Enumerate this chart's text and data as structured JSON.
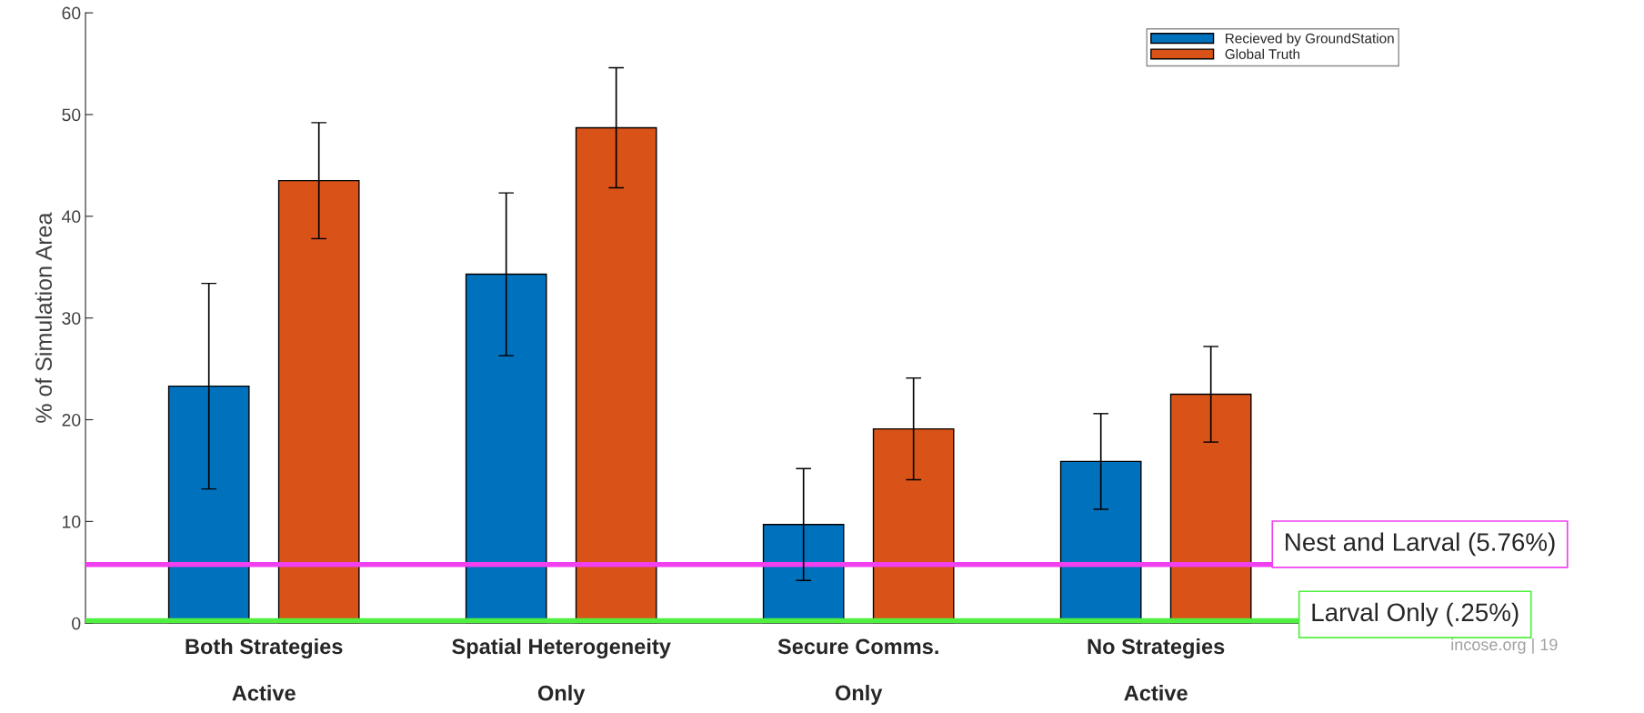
{
  "chart_data": {
    "type": "bar",
    "categories": [
      "Both Strategies\nActive",
      "Spatial Heterogeneity\nOnly",
      "Secure Comms.\nOnly",
      "No Strategies\nActive"
    ],
    "ylabel": "% of Simulation Area",
    "series": [
      {
        "name": "Recieved by GroundStation",
        "color": "#0072bd",
        "values": [
          23.3,
          34.3,
          9.7,
          15.9
        ],
        "errors": [
          10.1,
          8.0,
          5.5,
          4.7
        ]
      },
      {
        "name": "Global Truth",
        "color": "#d95319",
        "values": [
          43.5,
          48.7,
          19.1,
          22.5
        ],
        "errors": [
          5.7,
          5.9,
          5.0,
          4.7
        ]
      }
    ],
    "ylim": [
      0,
      60
    ],
    "yticks": [
      0,
      10,
      20,
      30,
      40,
      50,
      60
    ],
    "ref_lines": [
      {
        "axis": "y",
        "value": 5.76,
        "label": "Nest and Larval (5.76%)",
        "color": "#f040f0"
      },
      {
        "axis": "y",
        "value": 0.25,
        "label": "Larval Only (.25%)",
        "color": "#50f040"
      }
    ],
    "annotations": [
      "incose.org | 19"
    ],
    "legend": "top right",
    "grid": false
  }
}
